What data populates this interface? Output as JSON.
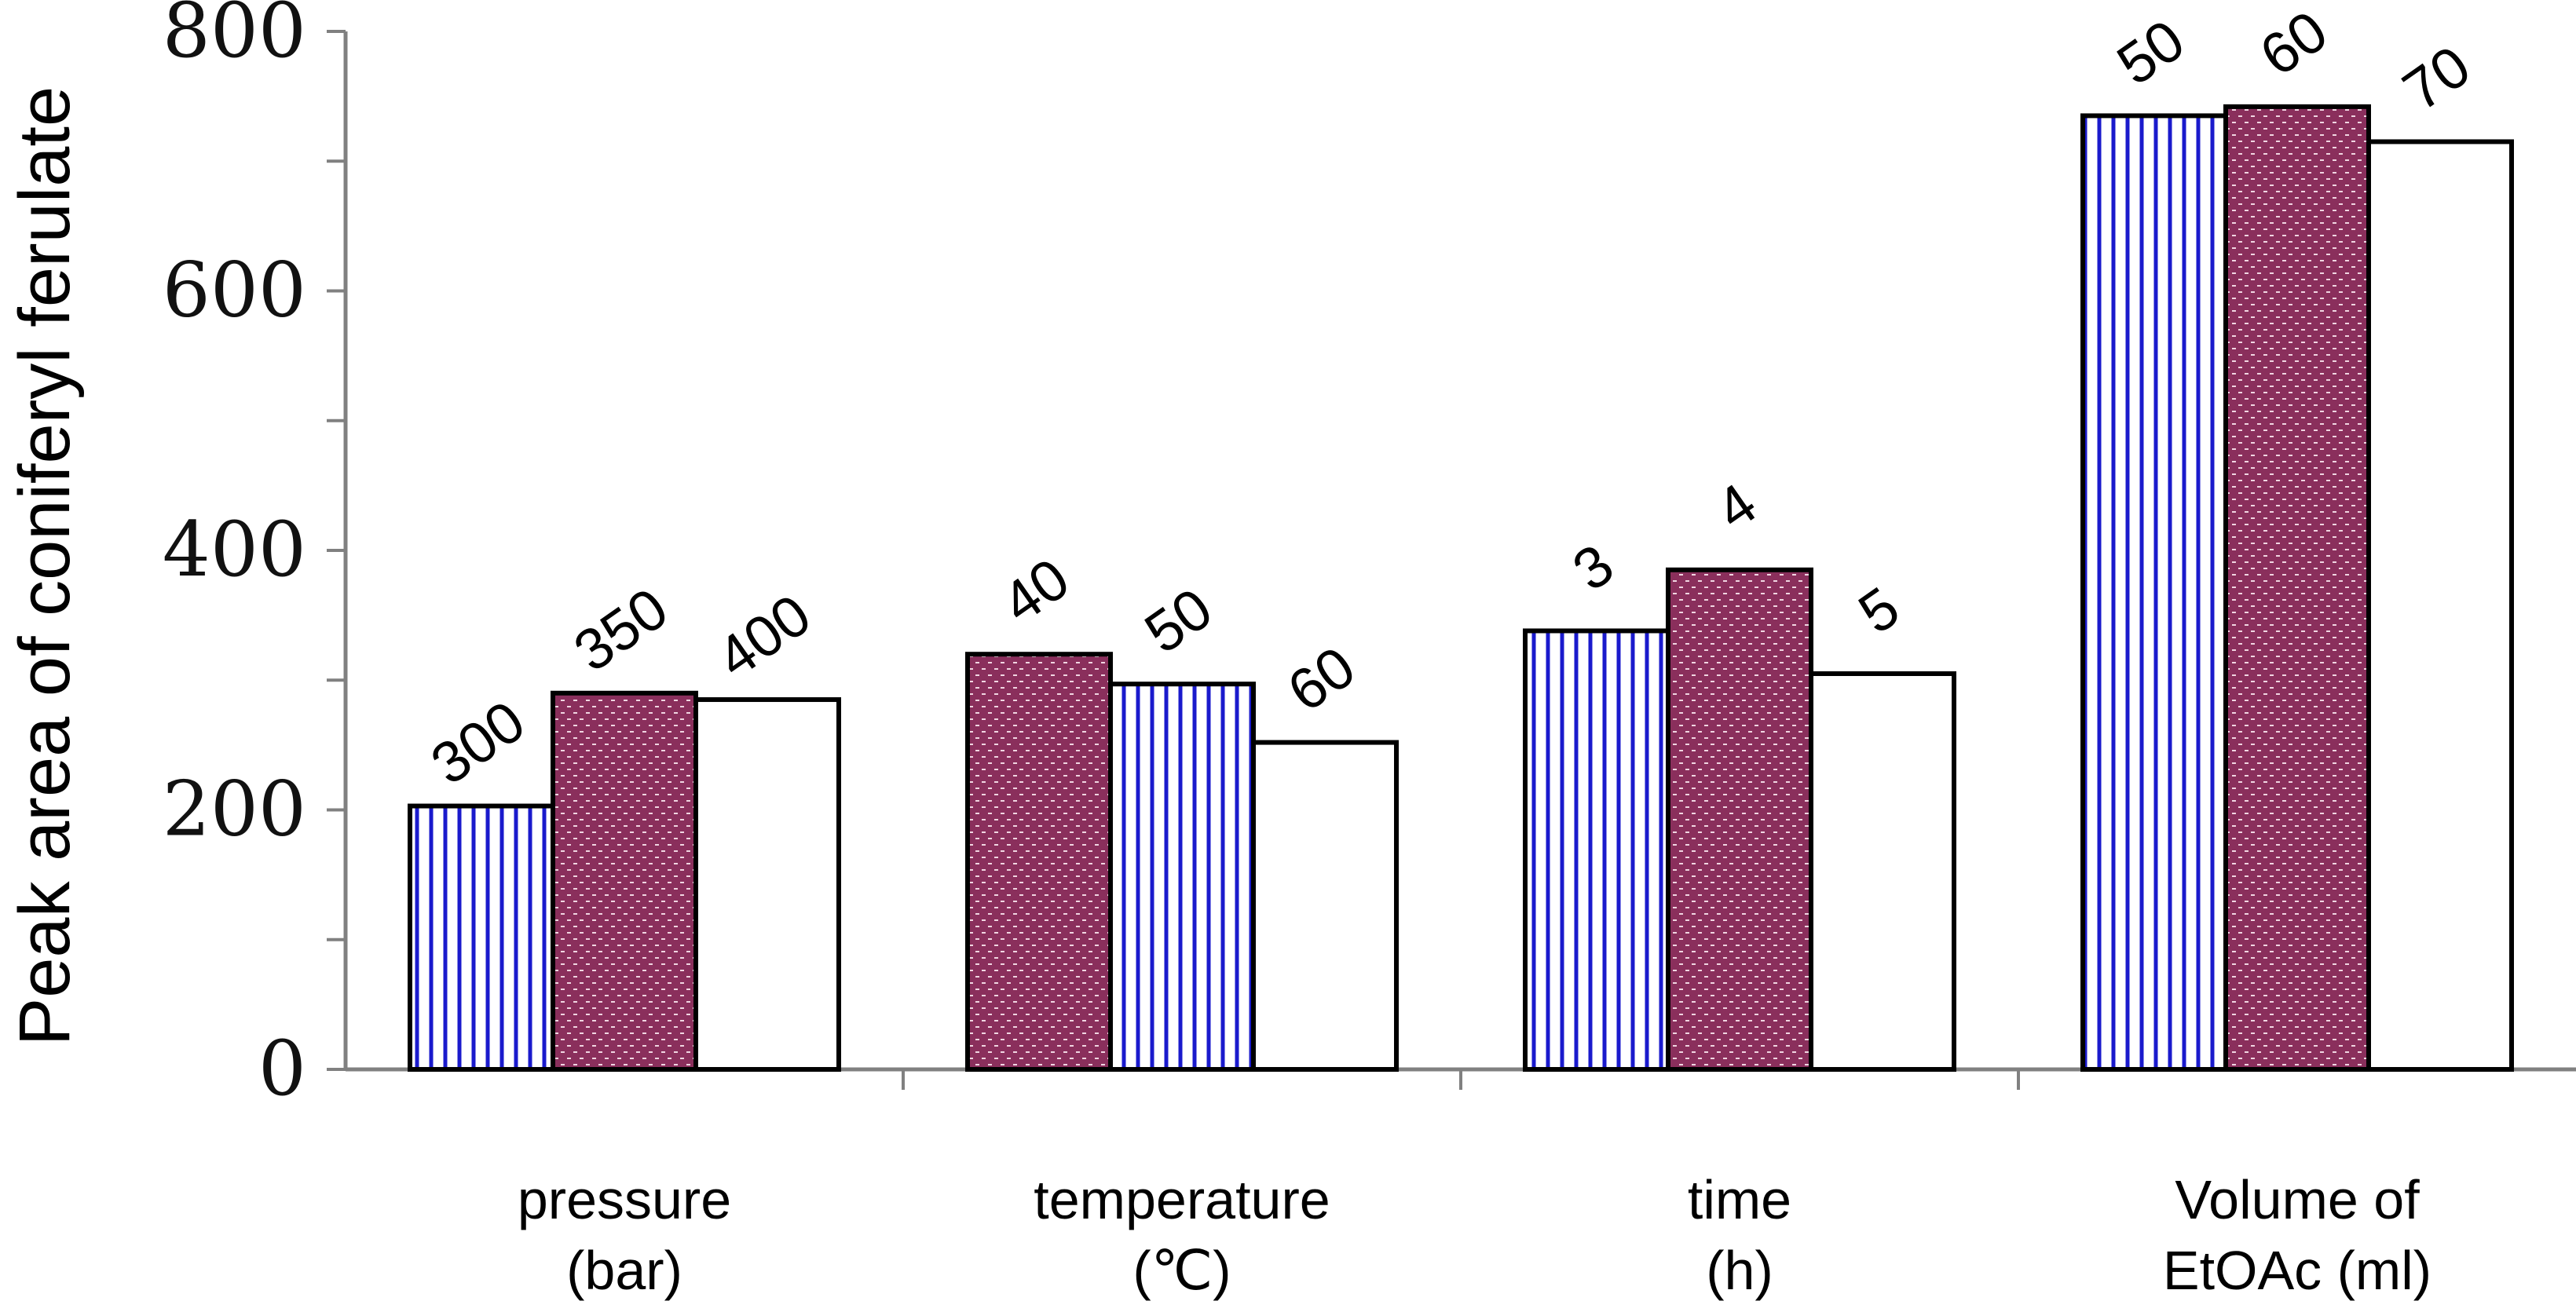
{
  "chart_data": {
    "type": "bar",
    "title": "",
    "xlabel": "",
    "ylabel": "Peak area of coniferyl ferulate",
    "ylim": [
      0,
      800
    ],
    "y_ticks": [
      "0",
      "200",
      "400",
      "600",
      "800"
    ],
    "grid": false,
    "patterns": {
      "blue-stripes": {
        "stroke": "#1a1acc"
      },
      "maroon-dots": {
        "fill": "#8a2f5c"
      },
      "white": {
        "fill": "#ffffff"
      }
    },
    "groups": [
      {
        "label_lines": [
          "pressure",
          "(bar)"
        ],
        "bars": [
          {
            "label": "300",
            "value": 203,
            "pattern": "blue-stripes"
          },
          {
            "label": "350",
            "value": 290,
            "pattern": "maroon-dots"
          },
          {
            "label": "400",
            "value": 285,
            "pattern": "white"
          }
        ]
      },
      {
        "label_lines": [
          "temperature",
          "(℃)"
        ],
        "bars": [
          {
            "label": "40",
            "value": 320,
            "pattern": "maroon-dots"
          },
          {
            "label": "50",
            "value": 297,
            "pattern": "blue-stripes"
          },
          {
            "label": "60",
            "value": 252,
            "pattern": "white"
          }
        ]
      },
      {
        "label_lines": [
          "time",
          "(h)"
        ],
        "bars": [
          {
            "label": "3",
            "value": 338,
            "pattern": "blue-stripes"
          },
          {
            "label": "4",
            "value": 385,
            "pattern": "maroon-dots"
          },
          {
            "label": "5",
            "value": 305,
            "pattern": "white"
          }
        ]
      },
      {
        "label_lines": [
          "Volume of",
          "EtOAc (ml)"
        ],
        "bars": [
          {
            "label": "50",
            "value": 735,
            "pattern": "blue-stripes"
          },
          {
            "label": "60",
            "value": 742,
            "pattern": "maroon-dots"
          },
          {
            "label": "70",
            "value": 715,
            "pattern": "white"
          }
        ]
      }
    ]
  }
}
